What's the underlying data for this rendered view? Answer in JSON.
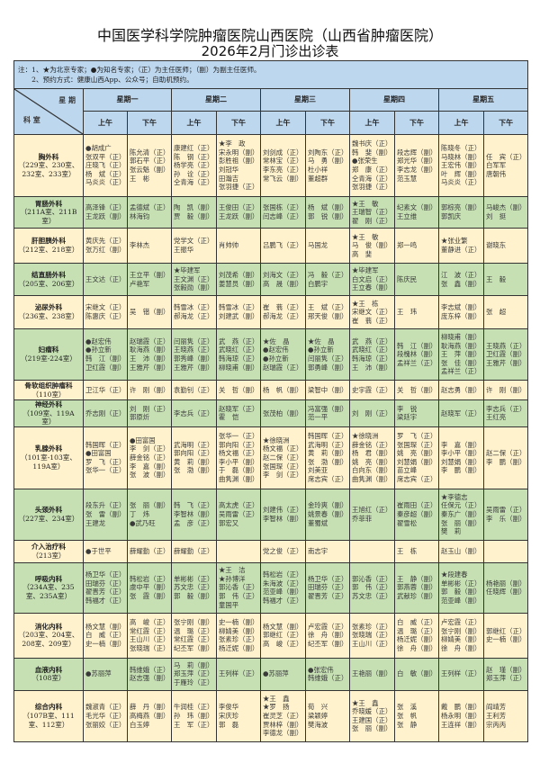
{
  "header": {
    "title": "中国医学科学院肿瘤医院山西医院（山西省肿瘤医院）",
    "subtitle": "2026年2月门诊出诊表"
  },
  "notes": [
    "注：1、★为北京专家；●为知名专家；（正）为主任医师；（副）为副主任医师。",
    "　　2、预约方式：健康山西App、公众号；自助机预约。"
  ],
  "table_header": {
    "weekday_label": "星 期",
    "dept_label": "科 室",
    "days": [
      "星期一",
      "星期二",
      "星期三",
      "星期四",
      "星期五"
    ],
    "am": "上午",
    "pm": "下午"
  },
  "colors": {
    "header_bg": "#bdd7ee",
    "row_cream": "#fff2cc",
    "row_green": "#c6e0b4"
  },
  "rows": [
    {
      "dept": "胸外科",
      "rooms": "（229室、230室、232室、233室）",
      "cells": [
        [
          "●胡成广",
          "张双平（正）",
          "庄晓飞（正）",
          "杨　斌（正）",
          "马炎炎（正）"
        ],
        [
          "陈允清（正）",
          "郭石平（正）",
          "张云魁（副）",
          "王　彬"
        ],
        [
          "康建红（正）",
          "陈　钢（正）",
          "杨学亮（正）",
          "孙　诠（正）",
          "仝青海（正）"
        ],
        [
          "★李　政",
          "宋永明（副）",
          "彭胜祖（副）",
          "刘冠华",
          "田瀚吉",
          "张羽捷（正）"
        ],
        [
          "刘剑成（正）",
          "常林宝（正）",
          "李东亮（正）",
          "常飞云（副）"
        ],
        [
          "刘陶东（正）",
          "马　勇（副）",
          "杜小祥",
          "董超群"
        ],
        [
          "魏书庆（正）",
          "韩　斐（副）",
          "●张荣生",
          "郑　康（正）",
          "仝青海（正）",
          "张羽捷（正）"
        ],
        [
          "段志辉（副）",
          "郑光华（副）",
          "李志龙（副）",
          "范玉慧"
        ],
        [
          "陈晓冬（正）",
          "马晓林（副）",
          "王宏伟（副）",
          "叶　辉（副）",
          "马炎炎（正）"
        ],
        [
          "任　宾（正）",
          "白军军",
          "唐朝伟"
        ]
      ]
    },
    {
      "dept": "胃肠外科",
      "rooms": "（211A室、211B室）",
      "cells": [
        [
          "高泽锋（正）",
          "王龙跃（副）"
        ],
        [
          "孟德斌（正）",
          "林海钧"
        ],
        [
          "陶　凯（副）",
          "贾　毅（副）"
        ],
        [
          "王俊田（正）",
          "王龙跃（副）"
        ],
        [
          "张国栋（正）",
          "闫志峰（正）"
        ],
        [
          "杨　斌（副）",
          "郭　锐（副）"
        ],
        [
          "★王　敏",
          "王瑞智（正）",
          "翟　刚（正）"
        ],
        [
          "纪素文（副）",
          "王立维"
        ],
        [
          "郭棕亮（副）",
          "郭凯庆"
        ],
        [
          "马峻杰（副）",
          "刘　挺"
        ]
      ]
    },
    {
      "dept": "肝胆胰外科",
      "rooms": "（212室、218室）",
      "cells": [
        [
          "黄庆先（正）",
          "张万红（副）"
        ],
        [
          "李林杰"
        ],
        [
          "党学文（正）",
          "王振华"
        ],
        [
          "肖帅帅"
        ],
        [
          "吕鹏飞（正）"
        ],
        [
          "马国龙"
        ],
        [
          "★王　敏",
          "马　俊（副）",
          "高　斐"
        ],
        [
          "郑一鸣"
        ],
        [
          "★张业繁",
          "董静进（正）"
        ],
        [
          "谢晓东"
        ]
      ]
    },
    {
      "dept": "结直肠外科",
      "rooms": "（205室、206室）",
      "cells": [
        [
          "王文达（正）"
        ],
        [
          "王立平（副）",
          "卢艳军"
        ],
        [
          "★毕建军",
          "王文渊（正）",
          "张毅勋（副）"
        ],
        [
          "刘茂希（副）",
          "姜慧员（副）"
        ],
        [
          "刘海文（正）",
          "高　晟（副）"
        ],
        [
          "冯　毅（正）",
          "白鹏宇"
        ],
        [
          "★毕建军",
          "白文启（正）",
          "王立春（副）"
        ],
        [
          "陈庆民"
        ],
        [
          "江　波（正）",
          "张　鑫（副）"
        ],
        [
          "王　毅"
        ]
      ]
    },
    {
      "dept": "泌尿外科",
      "rooms": "（236室、238室）",
      "cells": [
        [
          "宋继文（正）",
          "陈惠庆（正）"
        ],
        [
          "吴　锴（副）"
        ],
        [
          "韩雪冰（正）",
          "郝海龙（正）"
        ],
        [
          "韩雪冰（正）",
          "刘建武（副）"
        ],
        [
          "崔　蓊（正）",
          "郝海龙（正）"
        ],
        [
          "王　斌（正）",
          "邢天俊（副）"
        ],
        [
          "★王　栋",
          "宋继文（正）",
          "崔　蓊（正）"
        ],
        [
          "王　玮"
        ],
        [
          "李志斌（副）",
          "庞东梓（副）"
        ],
        [
          "张　超"
        ]
      ]
    },
    {
      "dept": "妇瘤科",
      "rooms": "（219室-224室）",
      "cells": [
        [
          "●赵宏伟",
          "●孙立新",
          "韩　江（副）",
          "卫红霞（副）"
        ],
        [
          "赵瑞霞（正）",
          "耿海燕（副）",
          "王　沛（副）",
          "王雅芹（副）"
        ],
        [
          "闫丽隽（正）",
          "王晓燕（正）",
          "郭秀峰（副）",
          "王雅芹（副）"
        ],
        [
          "武　燕（正）",
          "武晓红（正）",
          "韩海琼（正）",
          "柳晓甫（副）"
        ],
        [
          "★佐　晶",
          "●赵宏伟",
          "●孙立新",
          "赵瑞霞（正）"
        ],
        [
          "★佐　晶",
          "●孙立新",
          "闫丽隽（正）",
          "郭勇峰（副）"
        ],
        [
          "武　燕（正）",
          "武晓红（正）",
          "韩海琼（正）",
          "王　沛（副）"
        ],
        [
          "韩　江（副）",
          "段槐林（副）",
          "孟祥兰（正）"
        ],
        [
          "柳晓甫（副）",
          "耿海燕（副）",
          "王　萍（副）",
          "张　佳（副）",
          "孟祥兰（正）"
        ],
        [
          "王晓燕（正）",
          "卫红霞（副）",
          "王雅芹（副）"
        ]
      ]
    },
    {
      "dept": "骨软组织肿瘤科",
      "rooms": "（110室）",
      "cells": [
        [
          "卫江华（正）"
        ],
        [
          "许　刚（副）"
        ],
        [
          "袁勤钊（正）"
        ],
        [
          "关　哲（副）"
        ],
        [
          "杨　帆（副）"
        ],
        [
          "梁智中（副）"
        ],
        [
          "史宇霞（正）"
        ],
        [
          "关　哲（副）"
        ],
        [
          "赵志勇（副）"
        ],
        [
          "许　刚（副）"
        ]
      ]
    },
    {
      "dept": "神经外科",
      "rooms": "（109室、119A室）",
      "cells": [
        [
          "乔志刚（正）"
        ],
        [
          "刘　刚（正）",
          "郭原炘"
        ],
        [
          "李志兵（正）"
        ],
        [
          "赵晓军（正）",
          "霍　恺"
        ],
        [
          "张茂柏（副）"
        ],
        [
          "冯富强（副）",
          "范一平"
        ],
        [
          "刘　刚（正）"
        ],
        [
          "李　锐",
          "梁廷宇"
        ],
        [
          "赵晓军（正）"
        ],
        [
          "李志兵（正）",
          "王红亮"
        ]
      ]
    },
    {
      "dept": "乳腺外科",
      "rooms": "（101室-103室、119A室）",
      "cells": [
        [
          "韩国晖（正）",
          "●田富国",
          "罗　飞（正）",
          "张华一（正）"
        ],
        [
          "●田富国",
          "李　剑（正）",
          "薛金铭（正）",
          "李　嘉（副）",
          "张　波（副）"
        ],
        [
          "武海明（正）",
          "郭向阳（正）",
          "黄　莉（副）",
          "张　渤（副）"
        ],
        [
          "张华一（正）",
          "郭向阳（正）",
          "杨文福（正）",
          "李小平（副）",
          "于　磊（副）",
          "曲隽渊（副）"
        ],
        [
          "★徐晓洲",
          "杨文福（正）",
          "赵二保（正）",
          "张国琛（正）",
          "李　剑（正）"
        ],
        [
          "韩国晖（正）",
          "武海明（正）",
          "黄　莉（副）",
          "张　渤（副）",
          "刘美亚",
          "席志宾（正）"
        ],
        [
          "★徐晓洲",
          "薛金铭（正）",
          "杨　君（副）",
          "姚　亮（副）",
          "白向东（副）",
          "曲隽渊（副）"
        ],
        [
          "罗　飞（正）",
          "张国琛（正）",
          "姚　亮（副）",
          "刘慧娟（副）",
          "苗立峰",
          "席志宾（正）"
        ],
        [
          "李　嘉（副）",
          "李小平（副）",
          "刘慧娟（副）",
          "李　鹏（副）"
        ],
        [
          "赵二保（正）",
          "李　鹏（副）"
        ]
      ]
    },
    {
      "dept": "头颈外科",
      "rooms": "（227室、234室）",
      "cells": [
        [
          "段东升（正）",
          "张　雷（副）",
          "王建龙"
        ],
        [
          "张　丽（副）",
          "丁　炜",
          "●武乃旺"
        ],
        [
          "韩　飞（正）",
          "李智林（副）",
          "孟　彦（正）"
        ],
        [
          "高太虎（正）",
          "吴雨雷（正）",
          "郭宏又"
        ],
        [
          "刘建伟（正）",
          "李智林（副）"
        ],
        [
          "金玲爽（副）",
          "姚景春（副）",
          "董蜀斌"
        ],
        [
          "王旭红（正）",
          "乔菲菲"
        ],
        [
          "崔雨田（正）",
          "秦彦超（副）",
          "翟雪松"
        ],
        [
          "★李德志",
          "任保元（正）",
          "秦东广（副）",
          "张　丽（副）",
          "樊　莉"
        ],
        [
          "吴雨雷（正）",
          "李　乐（副）"
        ]
      ]
    },
    {
      "dept": "介入治疗科",
      "rooms": "（213室）",
      "cells": [
        [
          "●于世平"
        ],
        [
          "薛耀勤（正）"
        ],
        [
          "薛耀勤（正）"
        ],
        [],
        [
          "党之俊（正）"
        ],
        [
          "南志宇"
        ],
        [],
        [
          "王　栋"
        ],
        [
          "赵玉山（副）"
        ],
        []
      ]
    },
    {
      "dept": "呼吸内科",
      "rooms": "（234A室、235室、235A室）",
      "cells": [
        [
          "杨卫华（正）",
          "田瑞芬（正）",
          "翟晋芳（正）",
          "韩福才（正）"
        ],
        [
          "韩松岩（正）",
          "虞中平（副）",
          "张　霞（副）"
        ],
        [
          "单彬彬（正）",
          "苏文忠（正）",
          "郭　毅（副）"
        ],
        [
          "★王　洁",
          "★孙博洋",
          "郭沁香（正）",
          "郭　伟（正）",
          "童国平"
        ],
        [
          "韩松岩（正）",
          "朱海波（正）",
          "范亚峰（副）",
          "韩福才（正）"
        ],
        [
          "杨卫华（正）",
          "田瑞芬（正）",
          "翟晋芳（正）"
        ],
        [
          "郭沁香（正）",
          "郭　伟（正）",
          "苏文忠（正）"
        ],
        [
          "王　静（副）",
          "郭燕蓉（副）",
          "武献珍（副）"
        ],
        [
          "★段建春",
          "单彬彬（正）",
          "郭　毅（副）",
          "范亚峰（副）"
        ],
        [
          "杨艳丽（副）",
          "任晓辉（副）"
        ]
      ]
    },
    {
      "dept": "消化内科",
      "rooms": "（203室、204室、208室、209室）",
      "cells": [
        [
          "杨文慧（副）",
          "白　威（正）",
          "史一楠（副）"
        ],
        [
          "高　峻（正）",
          "常红霞（正）",
          "王山川（正）",
          "张晓瑞（正）"
        ],
        [
          "张宁刚（副）",
          "温　璐（正）",
          "常红霞（正）",
          "纪丕军（副）"
        ],
        [
          "史一楠（副）",
          "柳婧美（副）",
          "张素珍（正）",
          "杨迁妮（副）"
        ],
        [
          "杨文慧（副）",
          "郭继红（正）",
          "高　峻（正）"
        ],
        [
          "卢宏霞（正）",
          "徐　舟（副）",
          "纪丕军（副）"
        ],
        [
          "张素珍（正）",
          "张晓瑞（正）",
          "王山川（正）"
        ],
        [
          "白　威（正）",
          "温　璐（正）",
          "杨迁妮（副）",
          "徐　舟（副）"
        ],
        [
          "卢宏霞（正）",
          "张宁刚（副）",
          "柳婧美（副）",
          "徐　舟（副）"
        ],
        [
          "郭继红（正）",
          "史一楠（副）"
        ]
      ]
    },
    {
      "dept": "血液内科",
      "rooms": "（108室）",
      "cells": [
        [
          "●苏丽萍"
        ],
        [
          "韩维娥（正）",
          "赵志强（副）"
        ],
        [
          "马　莉（副）",
          "郑玉萍（正）",
          "于雁玲（正）"
        ],
        [
          "王列样（正）"
        ],
        [
          "●苏丽萍"
        ],
        [
          "●张宏伟",
          "韩维娥（正）"
        ],
        [
          "王艳丽（副）"
        ],
        [
          "白　敏（副）"
        ],
        [
          "王列样（正）"
        ],
        [
          "赵　瑾（副）",
          "郑玉萍（正）"
        ]
      ]
    },
    {
      "dept": "综合内科",
      "rooms": "（107B室、111室、112室）",
      "cells": [
        [
          "魏淑青（正）",
          "毛光华（正）",
          "张丽姣（正）"
        ],
        [
          "薛　丹（副）",
          "高梅燕（副）",
          "白玉婷"
        ],
        [
          "牛润桂（正）",
          "孙　玮（副）",
          "王　军（正）"
        ],
        [
          "李俊华",
          "宋庆珍",
          "郭　磊"
        ],
        [
          "★王　鑫",
          "★罗　扬",
          "崔灵芝（正）",
          "贾林梓（副）",
          "李德龙（副）"
        ],
        [
          "荀　兴",
          "梁颖婷",
          "樊海波"
        ],
        [
          "★王　鑫",
          "乔晓媛（正）",
          "王建国（正）",
          "张　丽（副）"
        ],
        [
          "张　溪",
          "张　帆",
          "张　静"
        ],
        [
          "戴　鹏（副）",
          "杨永明（副）",
          "王连祥（副）"
        ],
        [
          "阎靖芳",
          "王利芳",
          "宗丙丙"
        ]
      ]
    }
  ]
}
